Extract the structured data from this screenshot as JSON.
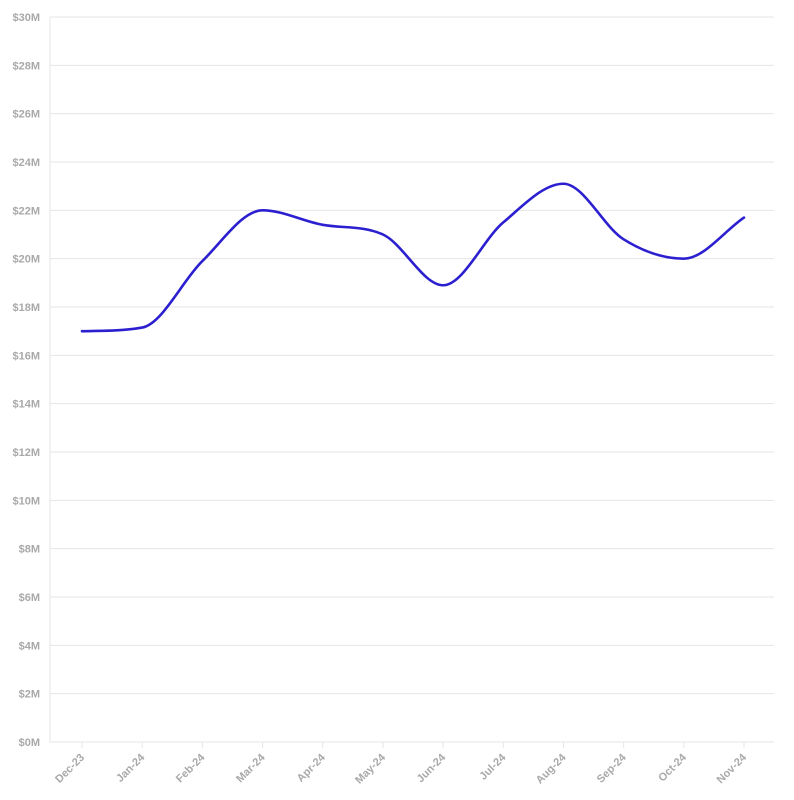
{
  "chart_data": {
    "type": "line",
    "title": "",
    "xlabel": "",
    "ylabel": "",
    "categories": [
      "Dec-23",
      "Jan-24",
      "Feb-24",
      "Mar-24",
      "Apr-24",
      "May-24",
      "Jun-24",
      "Jul-24",
      "Aug-24",
      "Sep-24",
      "Oct-24",
      "Nov-24"
    ],
    "series": [
      {
        "values": [
          17.0,
          17.15,
          19.9,
          22.0,
          21.4,
          21.0,
          18.9,
          21.5,
          23.1,
          20.8,
          20.0,
          21.7
        ]
      }
    ],
    "y_unit": "$M",
    "ylim": [
      0,
      30
    ],
    "yticks": [
      0,
      2,
      4,
      6,
      8,
      10,
      12,
      14,
      16,
      18,
      20,
      22,
      24,
      26,
      28,
      30
    ],
    "ytick_labels": [
      "$0M",
      "$2M",
      "$4M",
      "$6M",
      "$8M",
      "$10M",
      "$12M",
      "$14M",
      "$16M",
      "$18M",
      "$20M",
      "$22M",
      "$24M",
      "$26M",
      "$28M",
      "$30M"
    ],
    "grid": true,
    "legend": "none",
    "smooth": true,
    "colors": {
      "line": "#2b1fcf",
      "grid": "#e6e6e6",
      "tick_text": "#a9a9a9"
    }
  }
}
